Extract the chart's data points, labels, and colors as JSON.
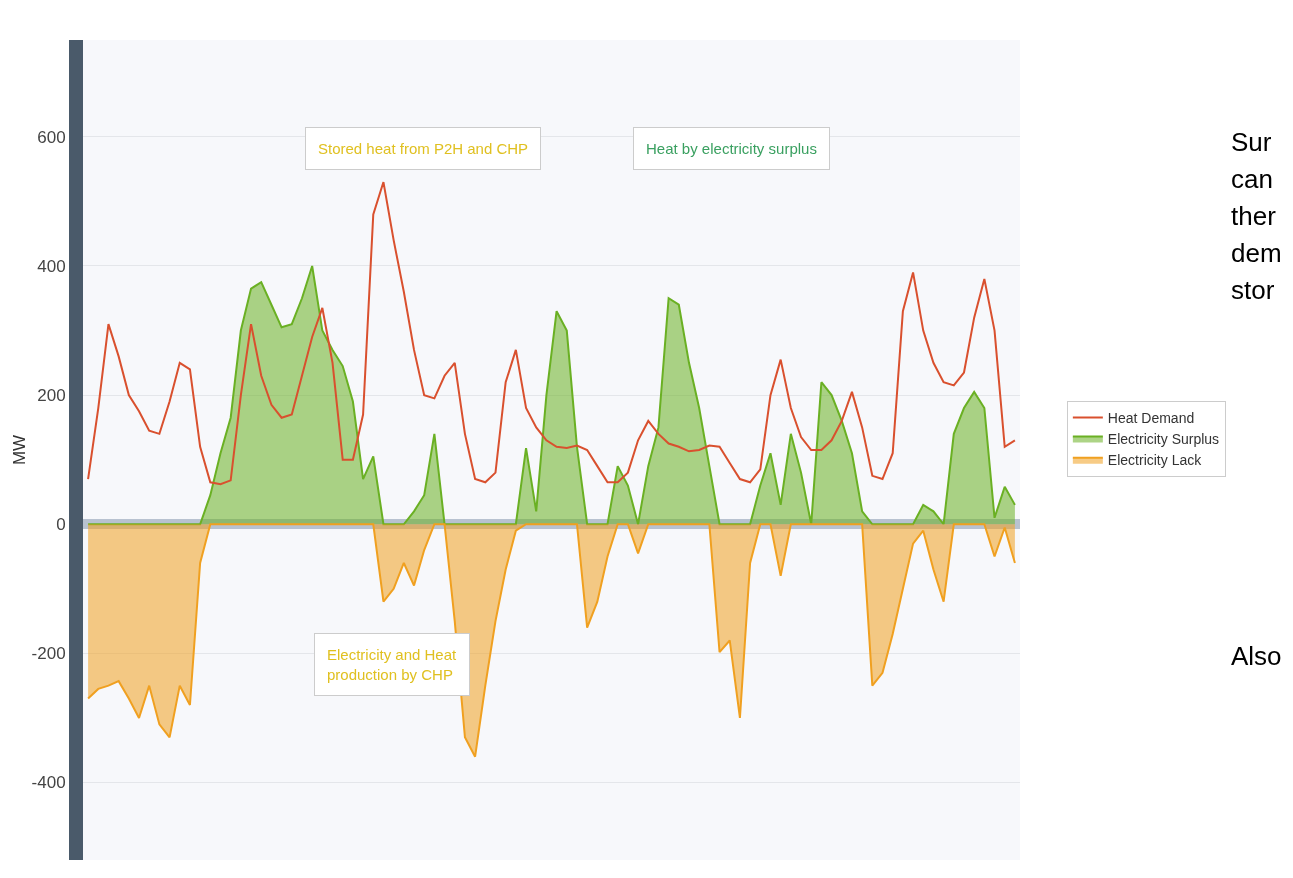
{
  "chart_data": {
    "type": "line",
    "ylabel": "MW",
    "categories": [
      null,
      null,
      null,
      null,
      null,
      null,
      null,
      null,
      null,
      null,
      null,
      null,
      null,
      null,
      null,
      null,
      null,
      null,
      null,
      null,
      null,
      null,
      null,
      null,
      null,
      null,
      null,
      null,
      null,
      null,
      null,
      null,
      null,
      null,
      null,
      null,
      null,
      null,
      null,
      null,
      null,
      null,
      null,
      null,
      null,
      null,
      null,
      null,
      null,
      null,
      null,
      null,
      null,
      null,
      null,
      null,
      null,
      null,
      null,
      null,
      null,
      null,
      null,
      null,
      null,
      null,
      null,
      null,
      null,
      null,
      null,
      null,
      null,
      null,
      null,
      null,
      null,
      null,
      null,
      null,
      null,
      null,
      null,
      null,
      null,
      null,
      null,
      null,
      null,
      null,
      null,
      null
    ],
    "series": [
      {
        "name": "Heat Demand",
        "color": "#d9502e",
        "values": [
          70,
          180,
          310,
          260,
          200,
          175,
          145,
          140,
          190,
          250,
          240,
          120,
          65,
          62,
          68,
          200,
          310,
          230,
          185,
          165,
          170,
          230,
          290,
          335,
          250,
          100,
          100,
          170,
          480,
          530,
          440,
          360,
          270,
          200,
          195,
          230,
          250,
          140,
          70,
          65,
          80,
          220,
          270,
          180,
          150,
          130,
          120,
          118,
          122,
          115,
          90,
          65,
          65,
          80,
          130,
          160,
          140,
          125,
          120,
          113,
          115,
          122,
          120,
          95,
          70,
          65,
          85,
          200,
          255,
          180,
          135,
          115,
          115,
          130,
          160,
          205,
          150,
          75,
          70,
          110,
          330,
          390,
          300,
          250,
          220,
          215,
          235,
          320,
          380,
          300,
          120,
          130
        ]
      },
      {
        "name": "Electricity Surplus",
        "type": "area",
        "color": "#6ab023",
        "values": [
          0,
          0,
          0,
          0,
          0,
          0,
          0,
          0,
          0,
          0,
          0,
          0,
          45,
          110,
          165,
          300,
          365,
          375,
          340,
          305,
          310,
          350,
          400,
          300,
          270,
          245,
          190,
          70,
          105,
          0,
          0,
          0,
          20,
          45,
          140,
          0,
          0,
          0,
          0,
          0,
          0,
          0,
          0,
          118,
          20,
          200,
          330,
          300,
          120,
          0,
          0,
          0,
          90,
          60,
          0,
          90,
          150,
          350,
          340,
          250,
          180,
          90,
          0,
          0,
          0,
          0,
          60,
          110,
          30,
          140,
          80,
          0,
          220,
          200,
          160,
          110,
          20,
          0,
          0,
          0,
          0,
          0,
          30,
          20,
          0,
          140,
          180,
          205,
          180,
          10,
          58,
          30
        ]
      },
      {
        "name": "Electricity Lack",
        "type": "area",
        "color": "#f0a020",
        "values": [
          -270,
          -255,
          -250,
          -243,
          -270,
          -300,
          -250,
          -310,
          -330,
          -250,
          -280,
          -60,
          0,
          0,
          0,
          0,
          0,
          0,
          0,
          0,
          0,
          0,
          0,
          0,
          0,
          0,
          0,
          0,
          0,
          -120,
          -100,
          -60,
          -95,
          -40,
          0,
          0,
          -150,
          -330,
          -360,
          -250,
          -150,
          -70,
          -10,
          0,
          0,
          0,
          0,
          0,
          0,
          -160,
          -120,
          -50,
          0,
          0,
          -45,
          0,
          0,
          0,
          0,
          0,
          0,
          0,
          -198,
          -180,
          -300,
          -60,
          0,
          0,
          -80,
          0,
          0,
          0,
          0,
          0,
          0,
          0,
          0,
          -250,
          -230,
          -170,
          -100,
          -30,
          -10,
          -70,
          -120,
          0,
          0,
          0,
          0,
          -50,
          -5,
          -60
        ]
      }
    ],
    "ylim": [
      -520,
      750
    ],
    "yticks": [
      -400,
      -200,
      0,
      200,
      400,
      600
    ],
    "grid": "y",
    "legend": "right",
    "tick_labels": "y",
    "annotations": [
      "Stored heat from P2H and CHP",
      "Heat by electricity surplus",
      "Electricity and Heat production by CHP",
      "Sur",
      "can",
      "ther",
      "dem",
      "stor",
      "Also"
    ]
  }
}
